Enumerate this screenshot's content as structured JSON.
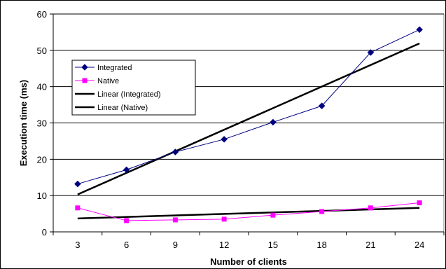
{
  "chart_data": {
    "type": "line",
    "xlabel": "Number of clients",
    "ylabel": "Execution time (ms)",
    "x": [
      3,
      6,
      9,
      12,
      15,
      18,
      21,
      24
    ],
    "ylim": [
      0,
      60
    ],
    "yticks": [
      0,
      10,
      20,
      30,
      40,
      50,
      60
    ],
    "grid": "horizontal",
    "legend_placement": "upper-left",
    "series": [
      {
        "name": "Integrated",
        "values": [
          13.2,
          17.1,
          22.0,
          25.5,
          30.2,
          34.7,
          49.4,
          55.7
        ],
        "color": "#000080",
        "marker": "diamond"
      },
      {
        "name": "Native",
        "values": [
          6.6,
          3.1,
          3.3,
          3.5,
          4.6,
          5.6,
          6.6,
          8.0
        ],
        "color": "#ff00ff",
        "marker": "square"
      }
    ],
    "trendlines": [
      {
        "name": "Linear (Integrated)",
        "type": "linear",
        "of": "Integrated",
        "start": 10.3,
        "end": 51.9,
        "color": "#000000"
      },
      {
        "name": "Linear (Native)",
        "type": "linear",
        "of": "Native",
        "start": 3.7,
        "end": 6.6,
        "color": "#000000"
      }
    ]
  }
}
